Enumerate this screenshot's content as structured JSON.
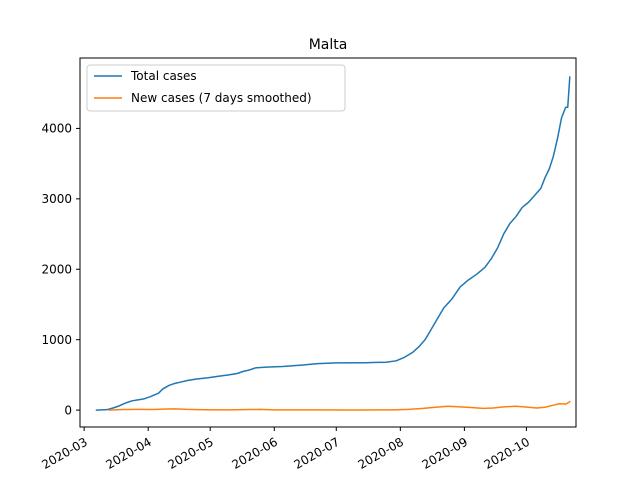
{
  "chart_data": {
    "type": "line",
    "title": "Malta",
    "xlabel": "",
    "ylabel": "",
    "x_range": [
      "2020-02-28",
      "2020-10-25"
    ],
    "ylim": [
      -240,
      5000
    ],
    "grid": false,
    "legend": "upper-left",
    "x_ticks": [
      "2020-03",
      "2020-04",
      "2020-05",
      "2020-06",
      "2020-07",
      "2020-08",
      "2020-09",
      "2020-10"
    ],
    "y_ticks": [
      0,
      1000,
      2000,
      3000,
      4000
    ],
    "series": [
      {
        "name": "Total cases",
        "color": "#1f77b4",
        "points": [
          [
            "2020-03-07",
            0
          ],
          [
            "2020-03-12",
            6
          ],
          [
            "2020-03-15",
            30
          ],
          [
            "2020-03-18",
            60
          ],
          [
            "2020-03-21",
            100
          ],
          [
            "2020-03-24",
            130
          ],
          [
            "2020-03-27",
            145
          ],
          [
            "2020-03-30",
            160
          ],
          [
            "2020-04-02",
            190
          ],
          [
            "2020-04-06",
            240
          ],
          [
            "2020-04-08",
            299
          ],
          [
            "2020-04-11",
            350
          ],
          [
            "2020-04-14",
            380
          ],
          [
            "2020-04-17",
            400
          ],
          [
            "2020-04-20",
            420
          ],
          [
            "2020-04-24",
            440
          ],
          [
            "2020-04-30",
            460
          ],
          [
            "2020-05-05",
            480
          ],
          [
            "2020-05-10",
            500
          ],
          [
            "2020-05-14",
            520
          ],
          [
            "2020-05-17",
            550
          ],
          [
            "2020-05-20",
            570
          ],
          [
            "2020-05-23",
            600
          ],
          [
            "2020-05-28",
            610
          ],
          [
            "2020-06-05",
            620
          ],
          [
            "2020-06-15",
            640
          ],
          [
            "2020-06-22",
            660
          ],
          [
            "2020-07-01",
            670
          ],
          [
            "2020-07-15",
            673
          ],
          [
            "2020-07-25",
            680
          ],
          [
            "2020-07-30",
            700
          ],
          [
            "2020-08-03",
            750
          ],
          [
            "2020-08-07",
            820
          ],
          [
            "2020-08-10",
            900
          ],
          [
            "2020-08-13",
            1000
          ],
          [
            "2020-08-16",
            1150
          ],
          [
            "2020-08-19",
            1300
          ],
          [
            "2020-08-22",
            1450
          ],
          [
            "2020-08-26",
            1580
          ],
          [
            "2020-08-30",
            1750
          ],
          [
            "2020-09-03",
            1850
          ],
          [
            "2020-09-07",
            1930
          ],
          [
            "2020-09-11",
            2030
          ],
          [
            "2020-09-14",
            2150
          ],
          [
            "2020-09-17",
            2300
          ],
          [
            "2020-09-20",
            2500
          ],
          [
            "2020-09-23",
            2650
          ],
          [
            "2020-09-26",
            2750
          ],
          [
            "2020-09-29",
            2880
          ],
          [
            "2020-10-02",
            2950
          ],
          [
            "2020-10-05",
            3050
          ],
          [
            "2020-10-08",
            3150
          ],
          [
            "2020-10-10",
            3300
          ],
          [
            "2020-10-12",
            3420
          ],
          [
            "2020-10-14",
            3600
          ],
          [
            "2020-10-16",
            3850
          ],
          [
            "2020-10-18",
            4150
          ],
          [
            "2020-10-20",
            4300
          ],
          [
            "2020-10-21",
            4300
          ],
          [
            "2020-10-22",
            4730
          ]
        ]
      },
      {
        "name": "New cases (7 days smoothed)",
        "color": "#ff7f0e",
        "points": [
          [
            "2020-03-13",
            0
          ],
          [
            "2020-03-20",
            8
          ],
          [
            "2020-03-27",
            10
          ],
          [
            "2020-04-03",
            8
          ],
          [
            "2020-04-10",
            15
          ],
          [
            "2020-04-14",
            18
          ],
          [
            "2020-04-20",
            10
          ],
          [
            "2020-04-28",
            5
          ],
          [
            "2020-05-10",
            4
          ],
          [
            "2020-05-20",
            8
          ],
          [
            "2020-05-25",
            10
          ],
          [
            "2020-06-01",
            4
          ],
          [
            "2020-06-20",
            3
          ],
          [
            "2020-07-10",
            1
          ],
          [
            "2020-07-28",
            3
          ],
          [
            "2020-08-05",
            10
          ],
          [
            "2020-08-12",
            25
          ],
          [
            "2020-08-18",
            40
          ],
          [
            "2020-08-24",
            55
          ],
          [
            "2020-08-30",
            45
          ],
          [
            "2020-09-05",
            35
          ],
          [
            "2020-09-10",
            25
          ],
          [
            "2020-09-15",
            30
          ],
          [
            "2020-09-20",
            45
          ],
          [
            "2020-09-26",
            55
          ],
          [
            "2020-10-02",
            40
          ],
          [
            "2020-10-06",
            30
          ],
          [
            "2020-10-10",
            40
          ],
          [
            "2020-10-14",
            70
          ],
          [
            "2020-10-17",
            90
          ],
          [
            "2020-10-20",
            85
          ],
          [
            "2020-10-21",
            100
          ],
          [
            "2020-10-22",
            120
          ]
        ]
      }
    ]
  }
}
